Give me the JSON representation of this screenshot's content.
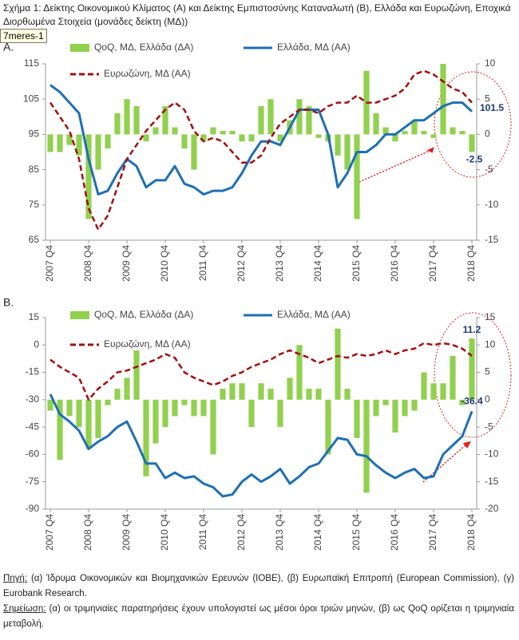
{
  "figure_title": "Σχήμα 1: Δείκτης Οικονομικού Κλίματος (Α) και Δείκτης Εμπιστοσύνης Καταναλωτή (Β), Ελλάδα και Ευρωζώνη, Εποχικά Διορθωμένα Στοιχεία (μονάδες δείκτη (ΜΔ))",
  "tooltip": "7meres-1",
  "chart_data": [
    {
      "type": "combo",
      "panel_label": "A.",
      "categories": [
        "2007 Q4",
        null,
        null,
        null,
        "2008 Q4",
        null,
        null,
        null,
        "2009 Q4",
        null,
        null,
        null,
        "2010 Q4",
        null,
        null,
        null,
        "2011 Q4",
        null,
        null,
        null,
        "2012 Q4",
        null,
        null,
        null,
        "2013 Q4",
        null,
        null,
        null,
        "2014 Q4",
        null,
        null,
        null,
        "2015 Q4",
        null,
        null,
        null,
        "2016 Q4",
        null,
        null,
        null,
        "2017 Q4",
        null,
        null,
        null,
        "2018 Q4"
      ],
      "ylim": [
        65,
        115
      ],
      "yticks": [
        65,
        75,
        85,
        95,
        105,
        115
      ],
      "y2lim": [
        -15,
        10
      ],
      "y2ticks": [
        -15,
        -10,
        -5,
        0,
        5,
        10
      ],
      "series": [
        {
          "name": "QoQ, ΜΔ, Ελλάδα (ΔΑ)",
          "type": "bar",
          "axis": "y2",
          "color": "#92d050",
          "label_last": true,
          "values": [
            -2.5,
            -2.5,
            -1.5,
            -3,
            -12,
            -5,
            -2,
            3,
            5,
            4,
            -1,
            1,
            4,
            1,
            -2,
            -5,
            -1,
            1,
            0.5,
            0.5,
            -1,
            -1,
            4,
            5,
            -1,
            2,
            5,
            4,
            -0.5,
            -1,
            -3,
            -5,
            -12,
            9,
            3,
            1,
            -1,
            0.5,
            2,
            0.5,
            -0.5,
            10,
            1,
            0.5,
            -2.5
          ]
        },
        {
          "name": "Ελλάδα, ΜΔ (ΑΑ)",
          "type": "line",
          "color": "#1f6fb2",
          "label_last": true,
          "values": [
            109,
            107,
            104,
            101,
            88,
            78,
            79,
            84,
            88,
            86,
            80,
            82,
            82,
            86,
            81,
            80,
            78,
            79,
            79,
            80,
            84,
            89,
            93,
            93,
            92,
            97,
            102,
            102,
            102,
            95,
            80,
            84,
            90,
            90,
            92,
            95,
            95,
            97,
            99,
            99,
            101,
            103,
            104,
            104,
            101.5
          ]
        },
        {
          "name": "Ευρωζώνη, ΜΔ (ΑΑ)",
          "type": "line",
          "dash": true,
          "color": "#a01010",
          "values": [
            104,
            100,
            96,
            88,
            74,
            68,
            72,
            80,
            88,
            92,
            96,
            99,
            102,
            104,
            102,
            96,
            93,
            94,
            93,
            90,
            87,
            87,
            89,
            94,
            98,
            100,
            102,
            102,
            101,
            103,
            104,
            104,
            106,
            104,
            104,
            105,
            106,
            108,
            112,
            113,
            112,
            110,
            108,
            107,
            104
          ]
        }
      ]
    },
    {
      "type": "combo",
      "panel_label": "B.",
      "categories": [
        "2007 Q4",
        null,
        null,
        null,
        "2008 Q4",
        null,
        null,
        null,
        "2009 Q4",
        null,
        null,
        null,
        "2010 Q4",
        null,
        null,
        null,
        "2011 Q4",
        null,
        null,
        null,
        "2012 Q4",
        null,
        null,
        null,
        "2013 Q4",
        null,
        null,
        null,
        "2014 Q4",
        null,
        null,
        null,
        "2015 Q4",
        null,
        null,
        null,
        "2016 Q4",
        null,
        null,
        null,
        "2017 Q4",
        null,
        null,
        null,
        "2018 Q4"
      ],
      "ylim": [
        -90,
        15
      ],
      "yticks": [
        -90,
        -75,
        -60,
        -45,
        -30,
        -15,
        0,
        15
      ],
      "y2lim": [
        -20,
        15
      ],
      "y2ticks": [
        -20,
        -15,
        -10,
        -5,
        0,
        5,
        10,
        15
      ],
      "series": [
        {
          "name": "QoQ, ΜΔ, Ελλάδα (ΔΑ)",
          "type": "bar",
          "axis": "y2",
          "color": "#92d050",
          "label_last": true,
          "values": [
            -2,
            -11,
            -3,
            -5,
            -9,
            -7,
            -1,
            2,
            4,
            9,
            -14,
            -8,
            -5,
            -3,
            -1,
            -3,
            -3,
            -10,
            2,
            3,
            3,
            -5,
            3,
            2,
            -5,
            4,
            10,
            2,
            2,
            -10,
            13,
            2,
            -7,
            -17,
            -3,
            -1,
            -6,
            -3,
            -2,
            5,
            3,
            3,
            8,
            -1,
            11.2
          ]
        },
        {
          "name": "Ελλάδα, ΜΔ (ΑΑ)",
          "type": "line",
          "color": "#1f6fb2",
          "label_last": true,
          "values": [
            -27,
            -38,
            -42,
            -47,
            -57,
            -53,
            -50,
            -45,
            -42,
            -53,
            -65,
            -65,
            -73,
            -70,
            -73,
            -72,
            -76,
            -78,
            -83,
            -82,
            -75,
            -71,
            -75,
            -72,
            -68,
            -76,
            -72,
            -67,
            -65,
            -58,
            -51,
            -52,
            -60,
            -61,
            -66,
            -70,
            -73,
            -70,
            -68,
            -73,
            -72,
            -60,
            -55,
            -50,
            -36.4
          ]
        },
        {
          "name": "Ευρωζώνη, ΜΔ (ΑΑ)",
          "type": "line",
          "dash": true,
          "color": "#a01010",
          "values": [
            -8,
            -12,
            -15,
            -18,
            -30,
            -24,
            -20,
            -15,
            -14,
            -12,
            -10,
            -8,
            -5,
            -7,
            -15,
            -18,
            -20,
            -22,
            -20,
            -17,
            -15,
            -12,
            -10,
            -8,
            -5,
            -3,
            -5,
            -7,
            -10,
            -8,
            -6,
            -7,
            -5,
            -6,
            -5,
            -3,
            -5,
            -3,
            -2,
            1,
            0,
            1,
            0,
            -2,
            -6
          ]
        }
      ]
    }
  ],
  "source": {
    "label": "Πηγή:",
    "text": " (α) Ίδρυμα Οικονομικών και Βιομηχανικών Ερευνών (ΙΟΒΕ), (β) Ευρωπαϊκή Επιτροπή (European Commission), (γ) Eurobank Research."
  },
  "note": {
    "label": "Σημείωση:",
    "text": " (α) οι τριμηνιαίες παρατηρήσεις έχουν υπολογιστεί ως μέσοι όροι τριών μηνών, (β) ως QoQ ορίζεται η τριμηνιαία μεταβολή."
  }
}
